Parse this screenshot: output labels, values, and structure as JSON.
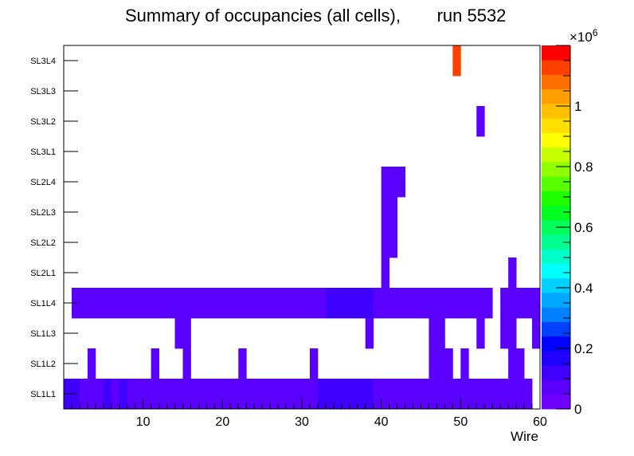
{
  "chart_data": {
    "type": "heatmap",
    "title": "Summary of occupancies (all cells),",
    "run_label": "run 5532",
    "xlabel": "Wire",
    "x_range": [
      0,
      60
    ],
    "x_ticks": [
      10,
      20,
      30,
      40,
      50,
      60
    ],
    "layers": [
      "SL1L1",
      "SL1L2",
      "SL1L3",
      "SL1L4",
      "SL2L1",
      "SL2L2",
      "SL2L3",
      "SL2L4",
      "SL3L1",
      "SL3L2",
      "SL3L3",
      "SL3L4"
    ],
    "z_max": 1.2,
    "z_unit_label": "×10",
    "z_exponent": "6",
    "z_ticks": [
      0,
      0.2,
      0.4,
      0.6,
      0.8,
      1
    ],
    "z_tick_labels": [
      "0",
      "0.2",
      "0.4",
      "0.6",
      "0.8",
      "1"
    ],
    "palette": [
      "#6e00ff",
      "#5a00ff",
      "#4000ff",
      "#2000ff",
      "#0000ff",
      "#0040ff",
      "#0080ff",
      "#00a8ff",
      "#00d0ff",
      "#00ffff",
      "#00ffc8",
      "#00ff90",
      "#00ff58",
      "#00ff20",
      "#20ff00",
      "#58ff00",
      "#90ff00",
      "#c8ff00",
      "#ffff00",
      "#ffe000",
      "#ffc000",
      "#ffa000",
      "#ff7000",
      "#ff4000",
      "#ff0000"
    ],
    "cells": [
      {
        "layer": "SL1L1",
        "from": 0,
        "to": 2,
        "value": 0.1
      },
      {
        "layer": "SL1L1",
        "from": 2,
        "to": 5,
        "value": 0.05
      },
      {
        "layer": "SL1L1",
        "from": 5,
        "to": 6,
        "value": 0.1
      },
      {
        "layer": "SL1L1",
        "from": 6,
        "to": 7,
        "value": 0.05
      },
      {
        "layer": "SL1L1",
        "from": 7,
        "to": 8,
        "value": 0.1
      },
      {
        "layer": "SL1L1",
        "from": 8,
        "to": 32,
        "value": 0.05
      },
      {
        "layer": "SL1L1",
        "from": 32,
        "to": 36,
        "value": 0.1
      },
      {
        "layer": "SL1L1",
        "from": 36,
        "to": 37,
        "value": 0.14
      },
      {
        "layer": "SL1L1",
        "from": 37,
        "to": 39,
        "value": 0.1
      },
      {
        "layer": "SL1L1",
        "from": 39,
        "to": 59,
        "value": 0.05
      },
      {
        "layer": "SL1L2",
        "from": 3,
        "to": 4,
        "value": 0.05
      },
      {
        "layer": "SL1L2",
        "from": 11,
        "to": 12,
        "value": 0.05
      },
      {
        "layer": "SL1L2",
        "from": 15,
        "to": 16,
        "value": 0.05
      },
      {
        "layer": "SL1L2",
        "from": 22,
        "to": 23,
        "value": 0.05
      },
      {
        "layer": "SL1L2",
        "from": 31,
        "to": 32,
        "value": 0.05
      },
      {
        "layer": "SL1L2",
        "from": 46,
        "to": 49,
        "value": 0.05
      },
      {
        "layer": "SL1L2",
        "from": 50,
        "to": 51,
        "value": 0.05
      },
      {
        "layer": "SL1L2",
        "from": 56,
        "to": 58,
        "value": 0.05
      },
      {
        "layer": "SL1L3",
        "from": 14,
        "to": 16,
        "value": 0.05
      },
      {
        "layer": "SL1L3",
        "from": 38,
        "to": 39,
        "value": 0.05
      },
      {
        "layer": "SL1L3",
        "from": 46,
        "to": 48,
        "value": 0.05
      },
      {
        "layer": "SL1L3",
        "from": 52,
        "to": 53,
        "value": 0.05
      },
      {
        "layer": "SL1L3",
        "from": 55,
        "to": 57,
        "value": 0.05
      },
      {
        "layer": "SL1L3",
        "from": 59,
        "to": 60,
        "value": 0.05
      },
      {
        "layer": "SL1L4",
        "from": 1,
        "to": 33,
        "value": 0.05
      },
      {
        "layer": "SL1L4",
        "from": 33,
        "to": 37,
        "value": 0.1
      },
      {
        "layer": "SL1L4",
        "from": 37,
        "to": 38,
        "value": 0.14
      },
      {
        "layer": "SL1L4",
        "from": 38,
        "to": 39,
        "value": 0.1
      },
      {
        "layer": "SL1L4",
        "from": 39,
        "to": 54,
        "value": 0.05
      },
      {
        "layer": "SL1L4",
        "from": 55,
        "to": 60,
        "value": 0.05
      },
      {
        "layer": "SL2L1",
        "from": 40,
        "to": 41,
        "value": 0.05
      },
      {
        "layer": "SL2L1",
        "from": 56,
        "to": 57,
        "value": 0.05
      },
      {
        "layer": "SL2L2",
        "from": 40,
        "to": 42,
        "value": 0.05
      },
      {
        "layer": "SL2L3",
        "from": 40,
        "to": 42,
        "value": 0.05
      },
      {
        "layer": "SL2L4",
        "from": 40,
        "to": 43,
        "value": 0.05
      },
      {
        "layer": "SL3L2",
        "from": 52,
        "to": 53,
        "value": 0.05
      },
      {
        "layer": "SL3L4",
        "from": 49,
        "to": 50,
        "value": 1.15
      }
    ]
  }
}
